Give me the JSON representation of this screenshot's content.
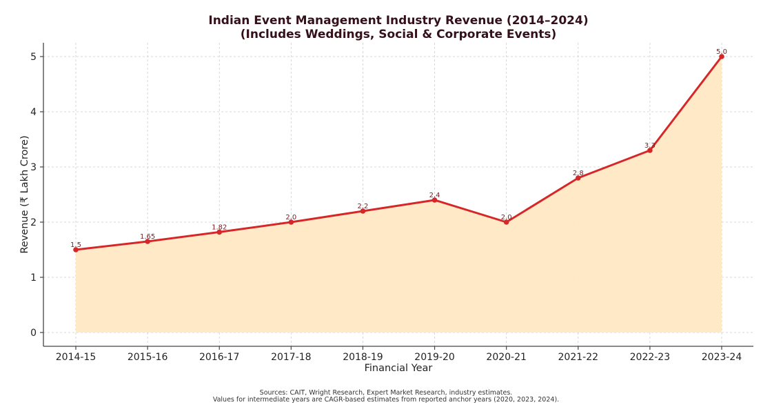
{
  "chart_data": {
    "type": "area",
    "title": "Indian Event Management Industry Revenue (2014–2024)",
    "subtitle": "(Includes Weddings, Social & Corporate Events)",
    "xlabel": "Financial Year",
    "ylabel": "Revenue (₹ Lakh Crore)",
    "categories": [
      "2014-15",
      "2015-16",
      "2016-17",
      "2017-18",
      "2018-19",
      "2019-20",
      "2020-21",
      "2021-22",
      "2022-23",
      "2023-24"
    ],
    "series": [
      {
        "name": "Revenue",
        "values": [
          1.5,
          1.65,
          1.82,
          2.0,
          2.2,
          2.4,
          2.0,
          2.8,
          3.3,
          5.0
        ],
        "labels": [
          "1.5",
          "1.65",
          "1.82",
          "2.0",
          "2.2",
          "2.4",
          "2.0",
          "2.8",
          "3.3",
          "5.0"
        ]
      }
    ],
    "yticks": [
      0,
      1,
      2,
      3,
      4,
      5
    ],
    "ytick_labels": [
      "0",
      "1",
      "2",
      "3",
      "4",
      "5"
    ],
    "ylim": [
      -0.25,
      5.25
    ],
    "grid": true,
    "legend": "none",
    "colors": {
      "line": "#d62728",
      "fill": "#ffe8c4",
      "data_label": "#7a1a22",
      "title": "#33101a",
      "grid": "#cccccc"
    },
    "footnotes": [
      "Sources: CAIT, Wright Research, Expert Market Research, industry estimates.",
      "Values for intermediate years are CAGR-based estimates from reported anchor years (2020, 2023, 2024)."
    ]
  }
}
